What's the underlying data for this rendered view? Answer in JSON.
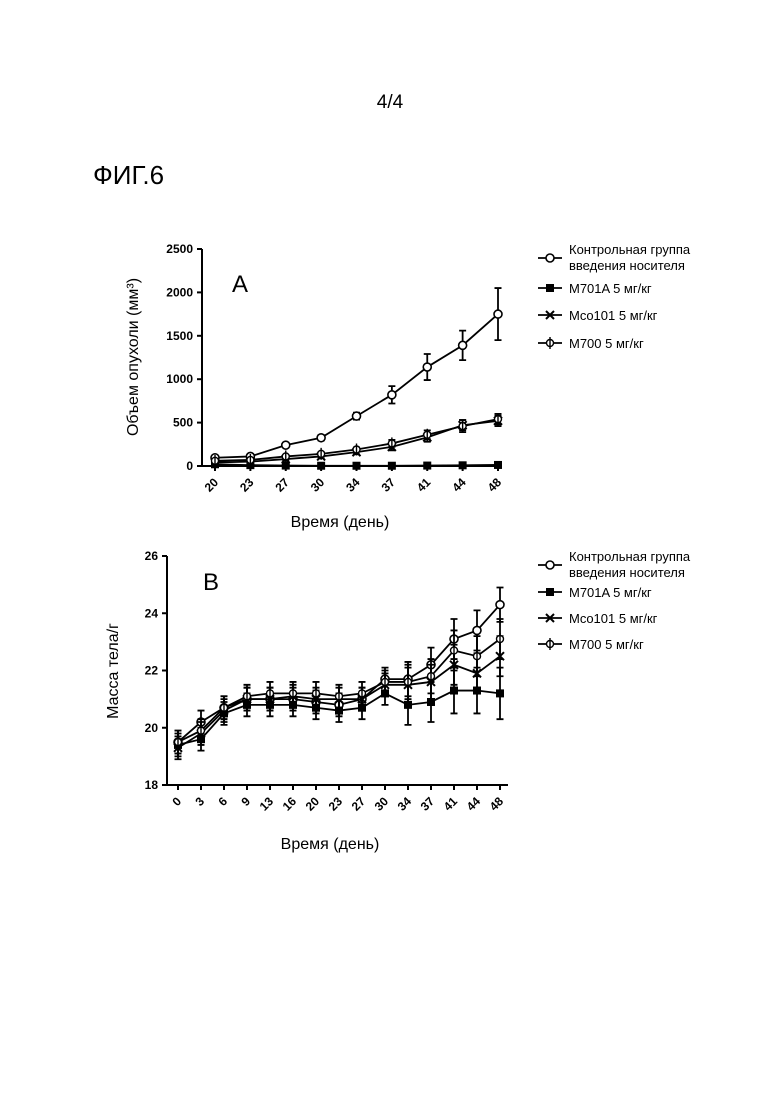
{
  "page_number": "4/4",
  "figure_label": "ФИГ.6",
  "legend": {
    "vehicle_line1": "Контрольная группа",
    "vehicle_line2": "введения носителя",
    "m701a": "M701A 5 мг/кг",
    "mco101": "Mco101 5 мг/кг",
    "m700": "M700 5 мг/кг"
  },
  "chart_data": [
    {
      "type": "line",
      "panel": "A",
      "xlabel": "Время (день)",
      "ylabel": "Объем опухоли (мм³)",
      "x": [
        "20",
        "23",
        "27",
        "30",
        "34",
        "37",
        "41",
        "44",
        "48"
      ],
      "ylim": [
        0,
        2500
      ],
      "yticks": [
        0,
        500,
        1000,
        1500,
        2000,
        2500
      ],
      "series": [
        {
          "name": "Контрольная группа введения носителя",
          "marker": "open-circle",
          "values": [
            95,
            110,
            240,
            325,
            575,
            820,
            1140,
            1390,
            1750
          ],
          "errors": [
            15,
            20,
            25,
            30,
            40,
            100,
            150,
            170,
            300
          ]
        },
        {
          "name": "M701A 5 мг/кг",
          "marker": "filled-square",
          "values": [
            20,
            10,
            5,
            3,
            3,
            3,
            5,
            8,
            12
          ],
          "errors": [
            5,
            5,
            5,
            3,
            3,
            3,
            5,
            5,
            5
          ]
        },
        {
          "name": "Mco101 5 мг/кг",
          "marker": "x",
          "values": [
            40,
            50,
            80,
            110,
            160,
            220,
            330,
            470,
            520
          ],
          "errors": [
            10,
            10,
            15,
            20,
            25,
            40,
            50,
            60,
            60
          ]
        },
        {
          "name": "M700 5 мг/кг",
          "marker": "open-circle-cross",
          "values": [
            60,
            70,
            110,
            140,
            190,
            260,
            360,
            460,
            540
          ],
          "errors": [
            10,
            10,
            15,
            20,
            25,
            40,
            50,
            70,
            60
          ]
        }
      ]
    },
    {
      "type": "line",
      "panel": "B",
      "xlabel": "Время (день)",
      "ylabel": "Масса тела/г",
      "x": [
        "0",
        "3",
        "6",
        "9",
        "13",
        "16",
        "20",
        "23",
        "27",
        "30",
        "34",
        "37",
        "41",
        "44",
        "48"
      ],
      "ylim": [
        18,
        26
      ],
      "yticks": [
        18,
        20,
        22,
        24,
        26
      ],
      "series": [
        {
          "name": "Контрольная группа введения носителя",
          "marker": "open-circle",
          "values": [
            19.5,
            20.2,
            20.7,
            21.0,
            21.0,
            21.0,
            20.9,
            20.8,
            21.0,
            21.7,
            21.7,
            22.2,
            23.1,
            23.4,
            24.3
          ],
          "errors": [
            0.4,
            0.4,
            0.4,
            0.4,
            0.4,
            0.4,
            0.4,
            0.4,
            0.4,
            0.4,
            0.6,
            0.6,
            0.7,
            0.7,
            0.6
          ]
        },
        {
          "name": "M701A 5 мг/кг",
          "marker": "filled-square",
          "values": [
            19.4,
            19.6,
            20.5,
            20.8,
            20.8,
            20.8,
            20.7,
            20.6,
            20.7,
            21.2,
            20.8,
            20.9,
            21.3,
            21.3,
            21.2
          ],
          "errors": [
            0.4,
            0.4,
            0.4,
            0.4,
            0.4,
            0.4,
            0.4,
            0.4,
            0.4,
            0.4,
            0.7,
            0.7,
            0.8,
            0.8,
            0.9
          ]
        },
        {
          "name": "Mco101 5 мг/кг",
          "marker": "x",
          "values": [
            19.3,
            19.8,
            20.6,
            21.0,
            21.0,
            21.1,
            21.0,
            21.0,
            21.0,
            21.5,
            21.5,
            21.6,
            22.2,
            21.9,
            22.5
          ],
          "errors": [
            0.4,
            0.4,
            0.4,
            0.4,
            0.4,
            0.4,
            0.4,
            0.4,
            0.4,
            0.4,
            0.6,
            0.6,
            0.7,
            0.7,
            0.7
          ]
        },
        {
          "name": "M700 5 мг/кг",
          "marker": "open-circle-cross",
          "values": [
            19.5,
            19.9,
            20.7,
            21.1,
            21.2,
            21.2,
            21.2,
            21.1,
            21.2,
            21.6,
            21.6,
            21.8,
            22.7,
            22.5,
            23.1
          ],
          "errors": [
            0.4,
            0.4,
            0.4,
            0.4,
            0.4,
            0.4,
            0.4,
            0.4,
            0.4,
            0.4,
            0.6,
            0.6,
            0.7,
            0.7,
            0.7
          ]
        }
      ]
    }
  ]
}
